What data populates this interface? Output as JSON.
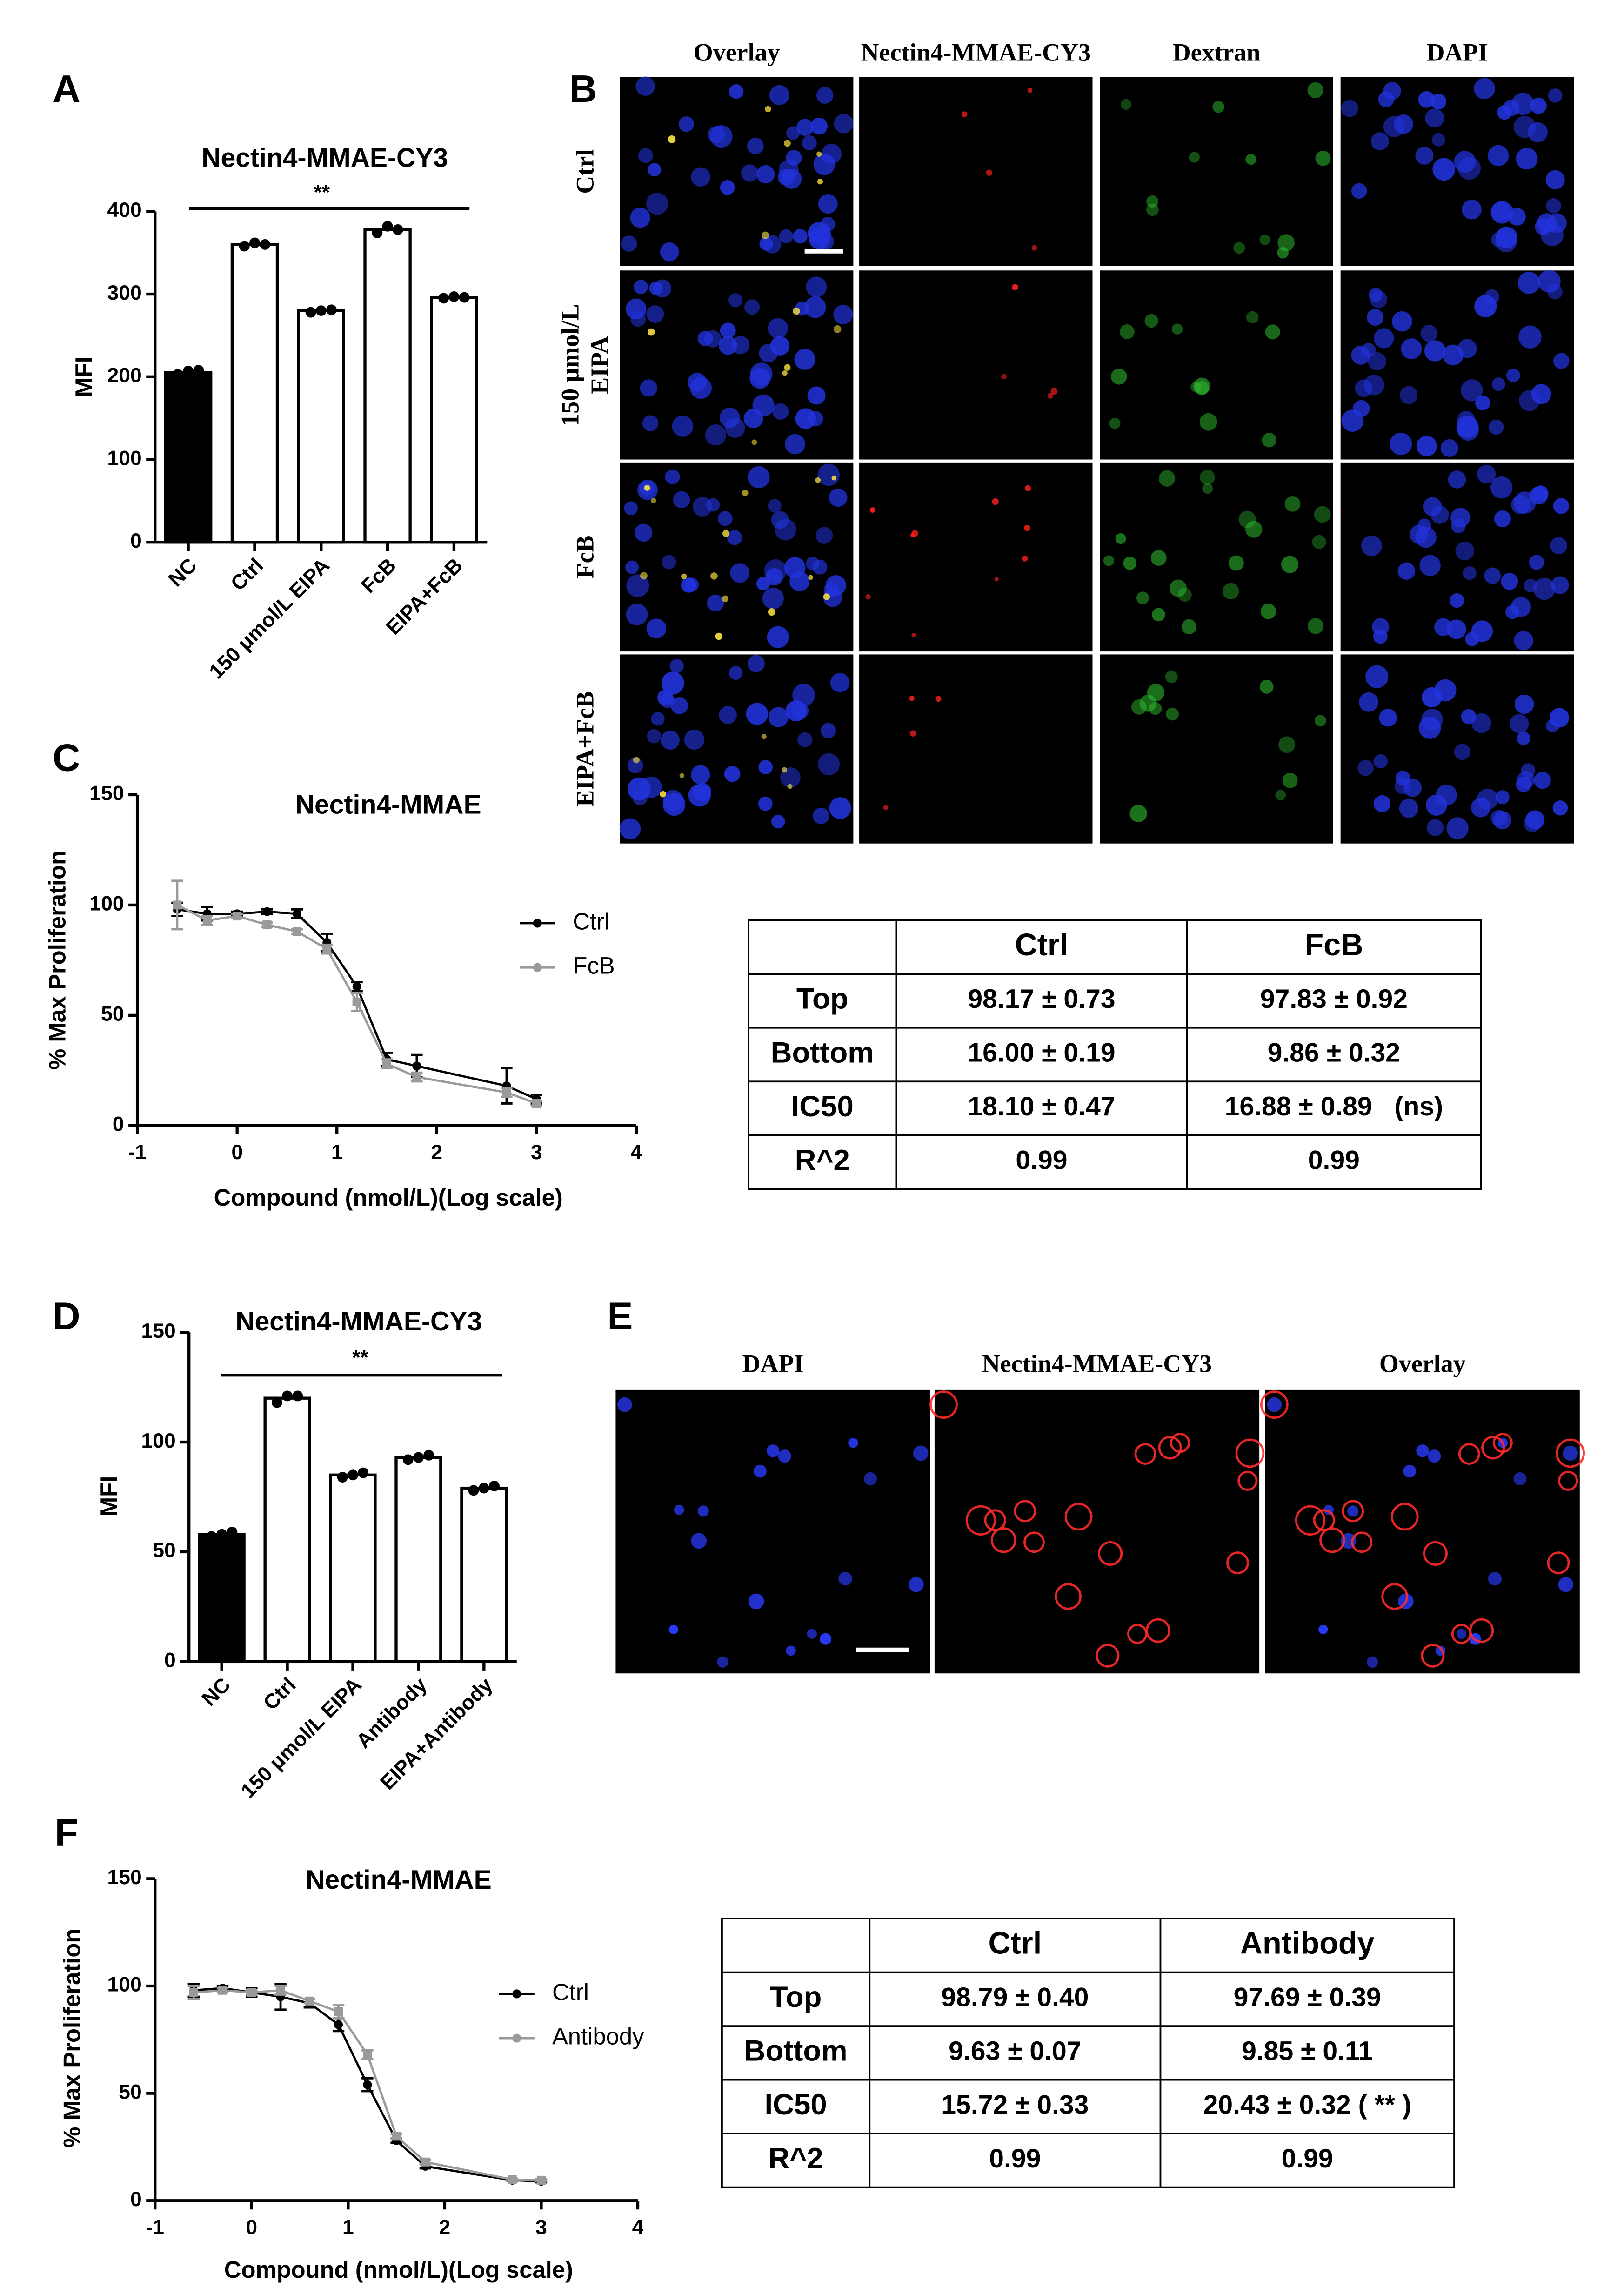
{
  "panel_letters": [
    "A",
    "B",
    "C",
    "D",
    "E",
    "F"
  ],
  "chart_data": [
    {
      "type": "bar",
      "title": "Nectin4-MMAE-CY3",
      "ylabel": "MFI",
      "categories": [
        "NC",
        "Ctrl",
        "150 μmol/L EIPA",
        "FcB",
        "EIPA+FcB"
      ],
      "values": [
        205,
        360,
        280,
        378,
        296
      ],
      "replicates": [
        [
          203,
          207,
          208
        ],
        [
          358,
          362,
          360
        ],
        [
          278,
          280,
          281
        ],
        [
          374,
          382,
          378
        ],
        [
          295,
          297,
          296
        ]
      ],
      "colors": [
        "#000000",
        "#ffffff",
        "#ffffff",
        "#ffffff",
        "#ffffff"
      ],
      "ylim": [
        0,
        400
      ],
      "yticks": [
        0,
        100,
        200,
        300,
        400
      ],
      "annotation": "**"
    },
    {
      "type": "line",
      "title": "Nectin4-MMAE",
      "ylabel": "% Max Proliferation",
      "xlabel": "Compound (nmol/L)(Log scale)",
      "x": [
        -0.6,
        -0.3,
        0,
        0.3,
        0.6,
        0.9,
        1.2,
        1.5,
        1.8,
        2.7,
        3.0
      ],
      "series": [
        {
          "name": "Ctrl",
          "color": "#000000",
          "values": [
            98,
            96,
            96,
            97,
            96,
            83,
            63,
            30,
            27,
            18,
            12
          ],
          "errors": [
            3,
            3,
            1,
            1,
            2,
            4,
            2,
            3,
            5,
            8,
            2
          ]
        },
        {
          "name": "FcB",
          "color": "#9a9a9a",
          "values": [
            100,
            93,
            95,
            91,
            88,
            80,
            56,
            28,
            22,
            15,
            10
          ],
          "errors": [
            11,
            2,
            1,
            1,
            1,
            2,
            4,
            2,
            2,
            2,
            1
          ]
        }
      ],
      "xlim": [
        -1,
        4
      ],
      "xticks": [
        -1,
        0,
        1,
        2,
        3,
        4
      ],
      "ylim": [
        0,
        150
      ],
      "yticks": [
        0,
        50,
        100,
        150
      ],
      "legend": "right"
    },
    {
      "type": "bar",
      "title": "Nectin4-MMAE-CY3",
      "ylabel": "MFI",
      "categories": [
        "NC",
        "Ctrl",
        "150 μmol/L EIPA",
        "Antibody",
        "EIPA+Antibody"
      ],
      "values": [
        58,
        120,
        85,
        93,
        79
      ],
      "replicates": [
        [
          57,
          58,
          59
        ],
        [
          118,
          121,
          121
        ],
        [
          84,
          85,
          86
        ],
        [
          92,
          93,
          94
        ],
        [
          78,
          79,
          80
        ]
      ],
      "colors": [
        "#000000",
        "#ffffff",
        "#ffffff",
        "#ffffff",
        "#ffffff"
      ],
      "ylim": [
        0,
        150
      ],
      "yticks": [
        0,
        50,
        100,
        150
      ],
      "annotation": "**"
    },
    {
      "type": "line",
      "title": "Nectin4-MMAE",
      "ylabel": "% Max Proliferation",
      "xlabel": "Compound (nmol/L)(Log scale)",
      "x": [
        -0.6,
        -0.3,
        0,
        0.3,
        0.6,
        0.9,
        1.2,
        1.5,
        1.8,
        2.7,
        3.0
      ],
      "series": [
        {
          "name": "Ctrl",
          "color": "#000000",
          "values": [
            98,
            99,
            97,
            95,
            92,
            82,
            54,
            28,
            16,
            9.5,
            9
          ],
          "errors": [
            3,
            1,
            2,
            6,
            2,
            3,
            3,
            1,
            1,
            0.5,
            0.5
          ]
        },
        {
          "name": "Antibody",
          "color": "#9a9a9a",
          "values": [
            97,
            98,
            97,
            98,
            93,
            88,
            68,
            30,
            18,
            9.8,
            9.5
          ],
          "errors": [
            3,
            1,
            1,
            2,
            1,
            3,
            2,
            1,
            1,
            0.5,
            0.5
          ]
        }
      ],
      "xlim": [
        -1,
        4
      ],
      "xticks": [
        -1,
        0,
        1,
        2,
        3,
        4
      ],
      "ylim": [
        0,
        150
      ],
      "yticks": [
        0,
        50,
        100,
        150
      ],
      "legend": "right"
    }
  ],
  "micrographs": [
    {
      "columns": [
        "Overlay",
        "Nectin4-MMAE-CY3",
        "Dextran",
        "DAPI"
      ],
      "rows": [
        [
          "Ctrl"
        ],
        [
          "150 μmol/L",
          "EIPA"
        ],
        [
          "FcB"
        ],
        [
          "EIPA+FcB"
        ]
      ]
    },
    {
      "columns": [
        "DAPI",
        "Nectin4-MMAE-CY3",
        "Overlay"
      ]
    }
  ],
  "tables": [
    {
      "columns": [
        "Ctrl",
        "FcB"
      ],
      "rows": [
        {
          "label": "Top",
          "cells": [
            "98.17 ± 0.73",
            "97.83 ± 0.92"
          ]
        },
        {
          "label": "Bottom",
          "cells": [
            "16.00 ± 0.19",
            "9.86 ± 0.32"
          ]
        },
        {
          "label": "IC50",
          "cells": [
            "18.10 ± 0.47",
            "16.88 ± 0.89   (ns)"
          ]
        },
        {
          "label": "R^2",
          "cells": [
            "0.99",
            "0.99"
          ]
        }
      ]
    },
    {
      "columns": [
        "Ctrl",
        "Antibody"
      ],
      "rows": [
        {
          "label": "Top",
          "cells": [
            "98.79 ± 0.40",
            "97.69 ± 0.39"
          ]
        },
        {
          "label": "Bottom",
          "cells": [
            "9.63 ± 0.07",
            "9.85 ± 0.11"
          ]
        },
        {
          "label": "IC50",
          "cells": [
            "15.72 ± 0.33",
            "20.43 ± 0.32 ( ** )"
          ]
        },
        {
          "label": "R^2",
          "cells": [
            "0.99",
            "0.99"
          ]
        }
      ]
    }
  ]
}
